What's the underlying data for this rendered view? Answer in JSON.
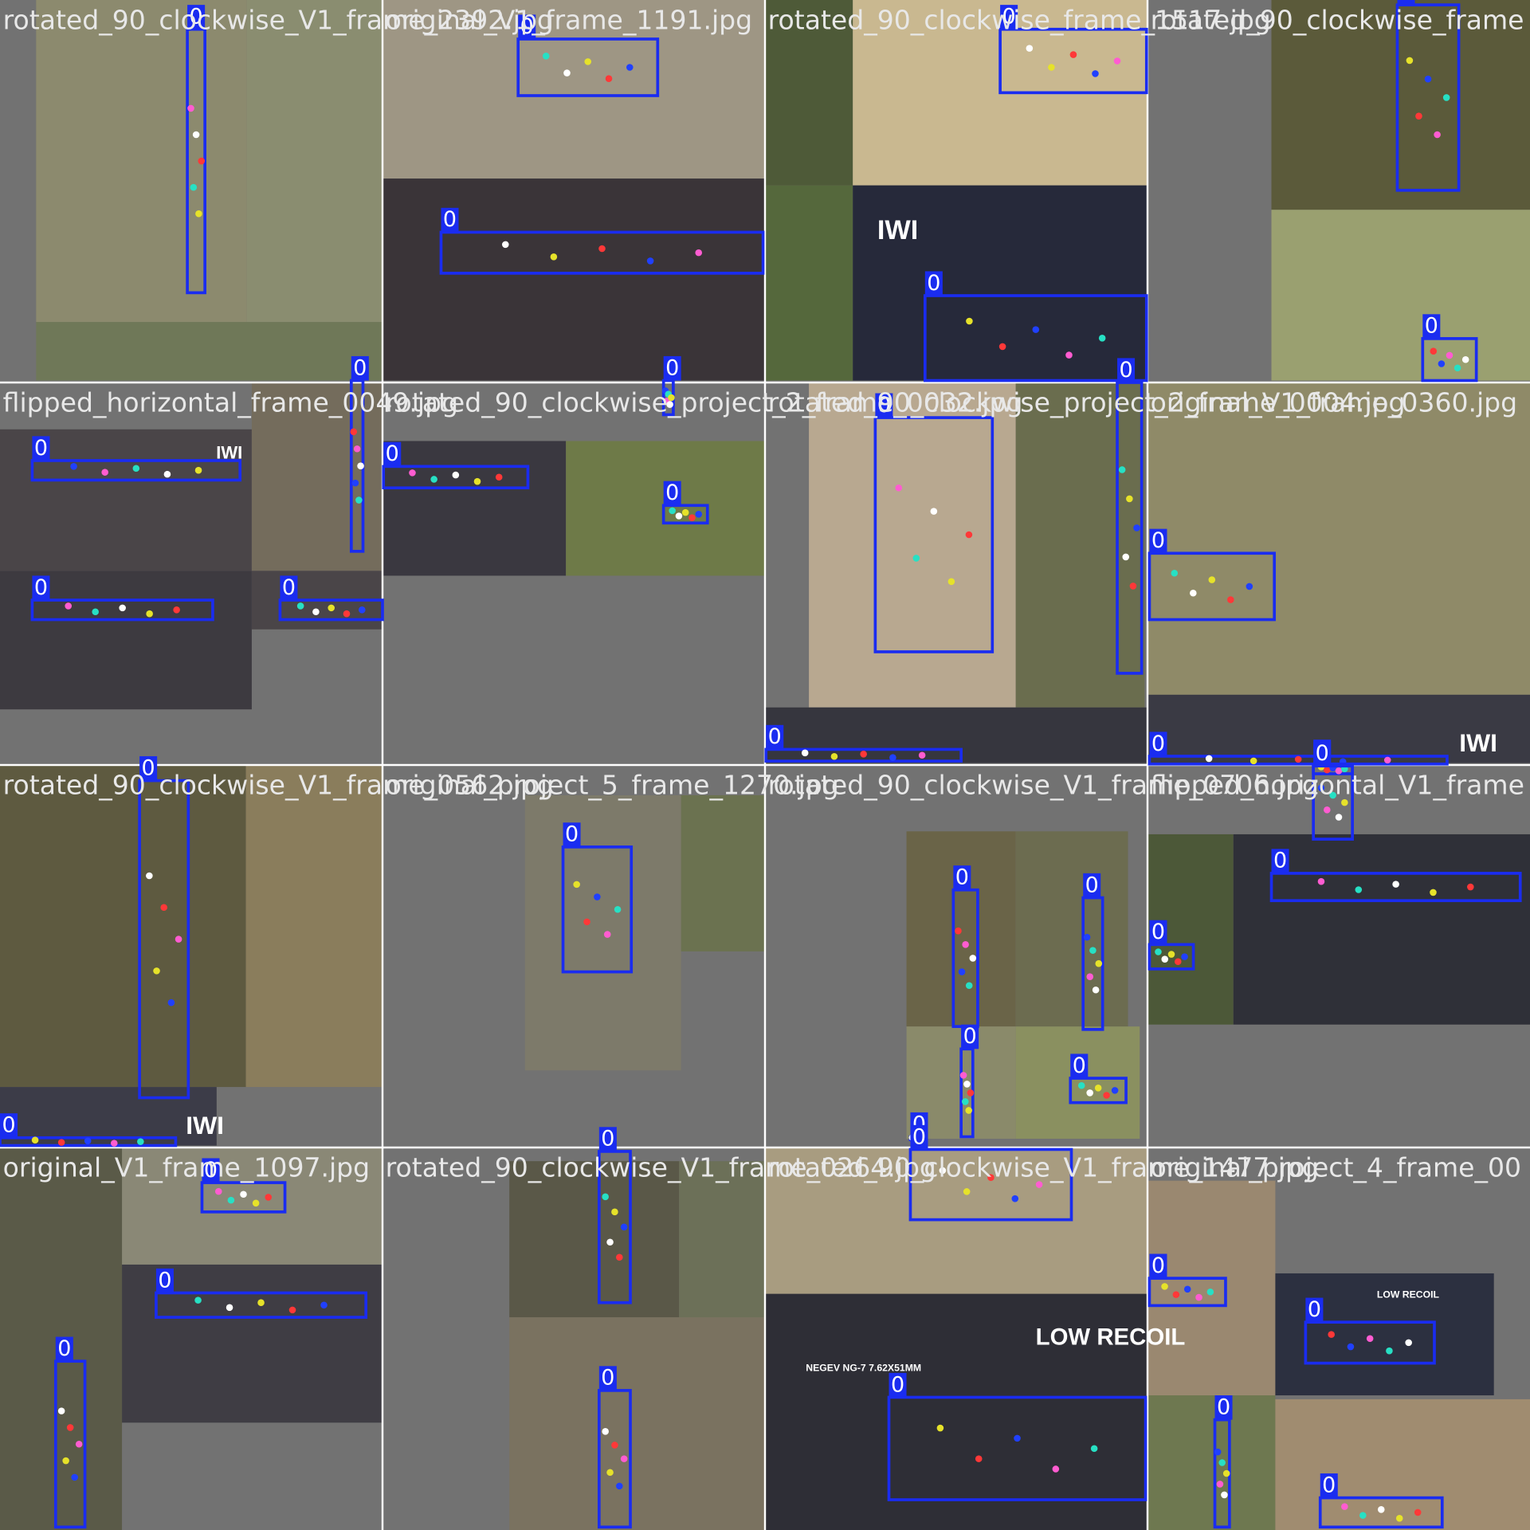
{
  "tiles": [
    {
      "title": "rotated_90_clockwise_V1_frame_2392.jpg",
      "boxes": [
        "0"
      ]
    },
    {
      "title": "original_V1_frame_1191.jpg",
      "boxes": [
        "0",
        "0"
      ]
    },
    {
      "title": "rotated_90_clockwise_frame_1517.jpg",
      "boxes": [
        "0",
        "0"
      ]
    },
    {
      "title": "rotated_90_clockwise_frame",
      "boxes": [
        "0",
        "0"
      ]
    },
    {
      "title": "flipped_horizontal_frame_0049.jpg",
      "boxes": [
        "0",
        "0",
        "0",
        "0"
      ]
    },
    {
      "title": "rotated_90_clockwise_project_2_frame_0032.jpg",
      "boxes": [
        "0",
        "0",
        "0"
      ]
    },
    {
      "title": "rotated_90_clockwise_project_2_frame_0004.jpg",
      "boxes": [
        "0",
        "0",
        "0"
      ]
    },
    {
      "title": "original_V1_frame_0360.jpg",
      "boxes": [
        "0",
        "0",
        "0"
      ]
    },
    {
      "title": "rotated_90_clockwise_V1_frame_0562.jpg",
      "boxes": [
        "0",
        "0"
      ]
    },
    {
      "title": "original_project_5_frame_1270.jpg",
      "boxes": [
        "0"
      ]
    },
    {
      "title": "rotated_90_clockwise_V1_frame_0706.jpg",
      "boxes": [
        "0",
        "0",
        "0",
        "0",
        "0"
      ]
    },
    {
      "title": "flipped_horizontal_V1_frame",
      "boxes": [
        "0",
        "0",
        "0"
      ]
    },
    {
      "title": "original_V1_frame_1097.jpg",
      "boxes": [
        "0",
        "0",
        "0"
      ]
    },
    {
      "title": "rotated_90_clockwise_V1_frame_0264.jpg",
      "boxes": [
        "0",
        "0"
      ]
    },
    {
      "title": "rotated_90_clockwise_V1_frame_1477.jpg",
      "boxes": [
        "0",
        "0"
      ]
    },
    {
      "title": "original_project_4_frame_00",
      "boxes": [
        "0",
        "0",
        "0",
        "0"
      ]
    }
  ],
  "overlays": [
    "IWI",
    "IWI",
    "IWI",
    "IWI",
    "LOW RECOIL",
    "NEGEV NG-7 7.62X51MM",
    "LOW RECOIL"
  ]
}
